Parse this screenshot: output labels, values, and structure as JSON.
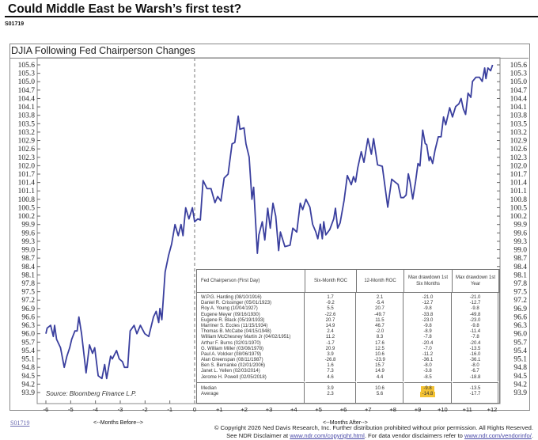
{
  "header": {
    "title": "Could Middle East be Warsh’s first test?",
    "id": "S01719"
  },
  "chart_data": {
    "type": "line",
    "title": "DJIA Following Fed Chairperson Changes",
    "source": "Source: Bloomberg Finance L.P.",
    "xlabel_before": "<--Months Before-->",
    "xlabel_after": "<--Months After-->",
    "xlim": [
      -6,
      12
    ],
    "ylim": [
      93.9,
      105.6
    ],
    "x_ticks": [
      "-6",
      "-5",
      "-4",
      "-3",
      "-2",
      "-1",
      "0",
      "+1",
      "+2",
      "+3",
      "+4",
      "+5",
      "+6",
      "+7",
      "+8",
      "+9",
      "+10",
      "+11",
      "+12"
    ],
    "y_ticks": [
      "105.6",
      "105.3",
      "105.0",
      "104.7",
      "104.4",
      "104.1",
      "103.8",
      "103.5",
      "103.2",
      "102.9",
      "102.6",
      "102.3",
      "102.0",
      "101.7",
      "101.4",
      "101.1",
      "100.8",
      "100.5",
      "100.2",
      "99.9",
      "99.6",
      "99.3",
      "99.0",
      "98.7",
      "98.4",
      "98.1",
      "97.8",
      "97.5",
      "97.2",
      "96.9",
      "96.6",
      "96.3",
      "96.0",
      "95.7",
      "95.4",
      "95.1",
      "94.8",
      "94.5",
      "94.2",
      "93.9"
    ],
    "event_marker_x": 0,
    "line_color": "#3a3f9e",
    "series": [
      {
        "x": [
          -6,
          -5.95,
          -5.81,
          -5.7,
          -5.65,
          -5.57,
          -5.41,
          -5.26,
          -5.15,
          -5.04,
          -4.96,
          -4.83,
          -4.74,
          -4.67,
          -4.56,
          -4.38,
          -4.24,
          -4.12,
          -4.03,
          -3.89,
          -3.74,
          -3.63,
          -3.55,
          -3.47,
          -3.39,
          -3.32,
          -3.15,
          -3.04,
          -2.91,
          -2.83,
          -2.7,
          -2.6,
          -2.44,
          -2.33,
          -2.19,
          -2.01,
          -1.85,
          -1.66,
          -1.55,
          -1.45,
          -1.4,
          -1.32,
          -1.19,
          -1.05,
          -0.93,
          -0.79,
          -0.66,
          -0.55,
          -0.47,
          -0.36,
          -0.23,
          -0.09,
          0,
          0.13,
          0.23,
          0.34,
          0.5,
          0.66,
          0.82,
          0.93,
          1.06,
          1.19,
          1.35,
          1.51,
          1.62,
          1.76,
          1.83,
          1.99,
          2.07,
          2.2,
          2.31,
          2.38,
          2.53,
          2.59,
          2.73,
          2.83,
          2.95,
          3.05,
          3.16,
          3.27,
          3.39,
          3.46,
          3.64,
          3.85,
          3.96,
          4.12,
          4.26,
          4.36,
          4.49,
          4.65,
          4.76,
          4.89,
          4.97,
          5.07,
          5.15,
          5.21,
          5.29,
          5.45,
          5.61,
          5.68,
          5.77,
          5.87,
          6.03,
          6.16,
          6.32,
          6.41,
          6.49,
          6.58,
          6.72,
          6.83,
          6.99,
          7.13,
          7.22,
          7.38,
          7.57,
          7.79,
          7.95,
          8.08,
          8.21,
          8.32,
          8.43,
          8.53,
          8.62,
          8.69,
          8.8,
          8.91,
          9.01,
          9.09,
          9.2,
          9.3,
          9.36,
          9.46,
          9.51,
          9.6,
          9.7,
          9.83,
          9.94,
          10.04,
          10.13,
          10.29,
          10.4,
          10.53,
          10.66,
          10.75,
          10.84,
          10.93,
          11.03,
          11.14,
          11.21,
          11.35,
          11.49,
          11.6,
          11.7,
          11.75,
          11.83,
          11.94,
          12.02
        ],
        "y": [
          96.0,
          96.2,
          96.3,
          95.9,
          96.3,
          95.8,
          95.5,
          94.8,
          95.2,
          95.5,
          95.8,
          96.1,
          96.1,
          96.6,
          96.0,
          94.6,
          95.6,
          95.3,
          95.5,
          94.5,
          94.4,
          94.9,
          94.4,
          94.8,
          95.2,
          95.1,
          95.4,
          95.1,
          95.0,
          94.8,
          94.8,
          96.1,
          96.3,
          96.0,
          96.3,
          96.0,
          95.9,
          96.6,
          96.8,
          96.4,
          96.9,
          96.5,
          98.2,
          98.8,
          99.2,
          99.9,
          99.5,
          99.9,
          99.5,
          100.5,
          100.1,
          100.5,
          100.0,
          100.1,
          100.06,
          101.47,
          101.18,
          101.18,
          100.68,
          100.9,
          100.74,
          101.56,
          101.7,
          102.78,
          102.83,
          103.77,
          103.3,
          103.35,
          102.78,
          102.31,
          100.8,
          101.23,
          98.87,
          99.53,
          100.0,
          99.35,
          100.48,
          99.77,
          100.66,
          100.2,
          98.97,
          99.63,
          99.11,
          99.16,
          99.77,
          99.63,
          100.66,
          100.43,
          100.8,
          100.52,
          99.91,
          99.63,
          99.39,
          99.91,
          99.39,
          100.0,
          99.53,
          99.72,
          100.1,
          100.48,
          99.77,
          99.96,
          100.76,
          101.65,
          101.32,
          101.61,
          101.42,
          101.93,
          102.5,
          102.12,
          102.97,
          102.41,
          102.97,
          102.03,
          101.98,
          100.52,
          101.52,
          101.42,
          101.33,
          100.86,
          100.86,
          100.95,
          101.71,
          101.42,
          100.81,
          101.42,
          102.08,
          101.99,
          103.27,
          102.79,
          102.75,
          102.18,
          102.32,
          102.08,
          102.56,
          103.03,
          103.03,
          103.74,
          103.46,
          104.07,
          103.74,
          104.11,
          104.21,
          104.4,
          104.02,
          103.83,
          104.59,
          104.44,
          105.01,
          105.16,
          105.16,
          105.01,
          105.49,
          105.11,
          105.49,
          105.39,
          105.6
        ]
      }
    ]
  },
  "table": {
    "headers": [
      "Fed Chairperson (First Day)",
      "Six-Month ROC",
      "12-Month ROC",
      "Max drawdown 1st Six Months",
      "Max drawdown 1st Year"
    ],
    "rows": [
      [
        "W.P.G. Harding (08/10/1916)",
        "1.7",
        "2.1",
        "-21.0",
        "-21.0"
      ],
      [
        "Daniel R. Crissinger (05/01/1923)",
        "-9.2",
        "-5.4",
        "-12.7",
        "-12.7"
      ],
      [
        "Roy A. Young (10/04/1927)",
        "5.5",
        "20.7",
        "-9.8",
        "-9.8"
      ],
      [
        "Eugene Meyer (09/16/1930)",
        "-22.6",
        "-49.7",
        "-33.8",
        "-49.8"
      ],
      [
        "Eugene R. Black (05/19/1933)",
        "20.7",
        "11.5",
        "-23.0",
        "-23.0"
      ],
      [
        "Marriner S. Eccles (11/15/1934)",
        "14.9",
        "46.7",
        "-9.8",
        "-9.8"
      ],
      [
        "Thomas B. McCabe (04/15/1948)",
        "2.4",
        "-2.0",
        "-8.9",
        "-11.4"
      ],
      [
        "William McChesney Martin Jr (04/02/1951)",
        "11.2",
        "8.3",
        "-7.8",
        "-7.8"
      ],
      [
        "Arthur F. Burns (02/01/1970)",
        "-1.7",
        "17.6",
        "-20.4",
        "-20.4"
      ],
      [
        "G. William Miller (03/08/1978)",
        "20.9",
        "12.5",
        "-7.0",
        "-13.5"
      ],
      [
        "Paul A. Volcker (08/06/1979)",
        "3.9",
        "10.6",
        "-11.2",
        "-16.0"
      ],
      [
        "Alan Greenspan (08/11/1987)",
        "-26.8",
        "-23.9",
        "-36.1",
        "-36.1"
      ],
      [
        "Ben S. Bernanke (02/01/2006)",
        "1.6",
        "15.7",
        "-8.0",
        "-8.0"
      ],
      [
        "Janet L. Yellen (02/03/2014)",
        "7.3",
        "14.9",
        "-3.8",
        "-6.7"
      ],
      [
        "Jerome H. Powell (02/05/2018)",
        "4.6",
        "4.4",
        "-8.5",
        "-18.8"
      ]
    ],
    "summary": [
      [
        "Median",
        "3.9",
        "10.6",
        "-9.8",
        "-13.5"
      ],
      [
        "Average",
        "2.3",
        "5.6",
        "-14.8",
        "-17.7"
      ]
    ],
    "highlight_color": "#f3c233"
  },
  "footer": {
    "link_id": "S01719",
    "copyright": "© Copyright 2026 Ned Davis Research, Inc.  Further distribution prohibited without prior permission.  All Rights Reserved.",
    "disclaimer_pre": "See NDR Disclaimer at ",
    "disclaimer_link1": "www.ndr.com/copyright.html",
    "disclaimer_mid": ". For data vendor disclaimers refer to ",
    "disclaimer_link2": "www.ndr.com/vendorinfo/",
    "disclaimer_end": "."
  }
}
